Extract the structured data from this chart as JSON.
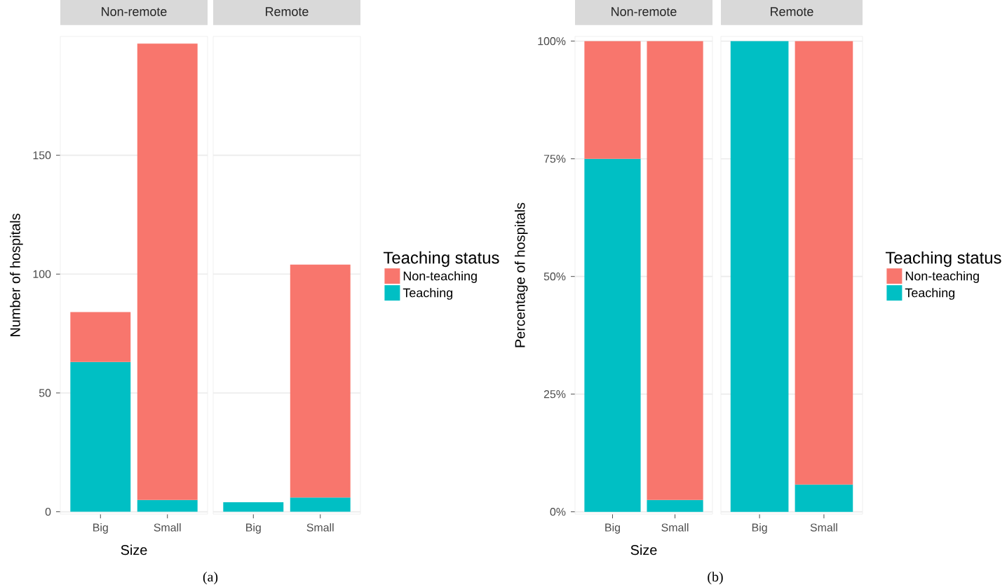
{
  "chart_data": [
    {
      "type": "bar",
      "title": "Non-remote",
      "ylabel": "Number of hospitals",
      "xlabel": "Size",
      "annotations": [
        "(a)"
      ],
      "categories": [
        "Big",
        "Small"
      ],
      "stacked": true,
      "grid": "y",
      "ylim": [
        -1,
        200
      ],
      "yticks": [
        0,
        50,
        100,
        150
      ],
      "series": [
        {
          "color": "#00bfc4",
          "values": [
            63,
            5
          ]
        },
        {
          "color": "#f8766d",
          "values": [
            21,
            192
          ]
        }
      ]
    },
    {
      "type": "bar",
      "title": "Remote",
      "categories": [
        "Big",
        "Small"
      ],
      "stacked": true,
      "grid": "y",
      "ylim": [
        -1,
        200
      ],
      "yticks": [
        0,
        50,
        100,
        150
      ],
      "tick_labels": "x",
      "legend": "right",
      "legend_title": "Teaching status",
      "series": [
        {
          "name": "Teaching",
          "color": "#00bfc4",
          "values": [
            4,
            6
          ]
        },
        {
          "name": "Non-teaching",
          "color": "#f8766d",
          "values": [
            0,
            98
          ]
        }
      ]
    },
    {
      "type": "bar",
      "title": "Non-remote",
      "ylabel": "Percentage of hospitals",
      "xlabel": "Size",
      "annotations": [
        "(b)"
      ],
      "categories": [
        "Big",
        "Small"
      ],
      "stacked": true,
      "grid": "y",
      "ylim": [
        -0.5,
        101
      ],
      "yticks": [
        {
          "value": 0,
          "label": "0%"
        },
        {
          "value": 25,
          "label": "25%"
        },
        {
          "value": 50,
          "label": "50%"
        },
        {
          "value": 75,
          "label": "75%"
        },
        {
          "value": 100,
          "label": "100%"
        }
      ],
      "series": [
        {
          "color": "#00bfc4",
          "values": [
            75,
            2.5
          ]
        },
        {
          "color": "#f8766d",
          "values": [
            25,
            97.5
          ]
        }
      ]
    },
    {
      "type": "bar",
      "title": "Remote",
      "categories": [
        "Big",
        "Small"
      ],
      "stacked": true,
      "grid": "y",
      "ylim": [
        -0.5,
        101
      ],
      "yticks": [
        0,
        25,
        50,
        75,
        100
      ],
      "tick_labels": "x",
      "legend": "right",
      "legend_title": "Teaching status",
      "series": [
        {
          "name": "Teaching",
          "color": "#00bfc4",
          "values": [
            100,
            5.8
          ]
        },
        {
          "name": "Non-teaching",
          "color": "#f8766d",
          "values": [
            0,
            94.2
          ]
        }
      ]
    }
  ]
}
